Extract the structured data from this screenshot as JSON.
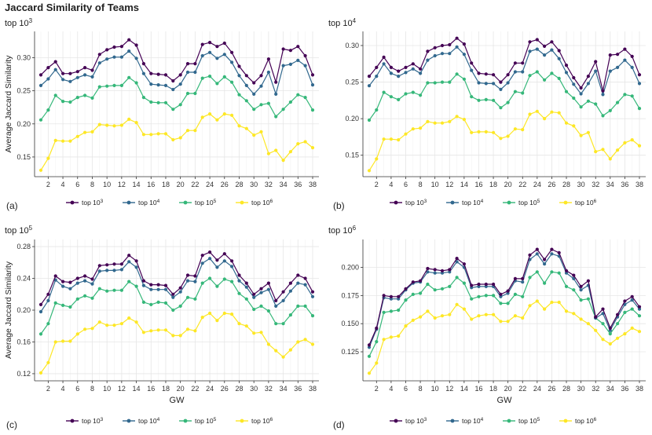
{
  "title": "Jaccard Similarity of Teams",
  "colors": {
    "top_1e3": "#440154",
    "top_1e4": "#31688e",
    "top_1e5": "#35b779",
    "top_1e6": "#fde725",
    "grid": "#e6e6e6"
  },
  "chart_data": [
    {
      "type": "line",
      "panel_label": "(a)",
      "panel_title": "top 10^3",
      "panel_title_base": "top  10",
      "panel_title_exp": "3",
      "ylabel": "Average Jaccard Similarity",
      "xlabel": "",
      "xlim": [
        1,
        38
      ],
      "ylim": [
        0.125,
        0.335
      ],
      "x_ticks": [
        2,
        4,
        6,
        8,
        10,
        12,
        14,
        16,
        18,
        20,
        22,
        24,
        26,
        28,
        30,
        32,
        34,
        36,
        38
      ],
      "y_ticks": [
        0.15,
        0.2,
        0.25,
        0.3
      ],
      "y_tick_labels": [
        "0.15",
        "0.20",
        "0.25",
        "0.30"
      ],
      "grid": true,
      "legend_position": "bottom",
      "x": [
        1,
        2,
        3,
        4,
        5,
        6,
        7,
        8,
        9,
        10,
        11,
        12,
        13,
        14,
        15,
        16,
        17,
        18,
        19,
        20,
        21,
        22,
        23,
        24,
        25,
        26,
        27,
        28,
        29,
        30,
        31,
        32,
        33,
        34,
        35,
        36,
        37,
        38
      ],
      "series": [
        {
          "name": "top 10^3",
          "legend_base": "top  10",
          "legend_exp": "3",
          "color_key": "top_1e3",
          "values": [
            0.274,
            0.285,
            0.294,
            0.276,
            0.276,
            0.279,
            0.285,
            0.281,
            0.305,
            0.312,
            0.316,
            0.317,
            0.327,
            0.319,
            0.291,
            0.276,
            0.275,
            0.274,
            0.265,
            0.274,
            0.291,
            0.291,
            0.32,
            0.323,
            0.317,
            0.322,
            0.308,
            0.287,
            0.273,
            0.262,
            0.273,
            0.298,
            0.263,
            0.313,
            0.311,
            0.317,
            0.303,
            0.274
          ]
        },
        {
          "name": "top 10^4",
          "legend_base": "top  10",
          "legend_exp": "4",
          "color_key": "top_1e4",
          "values": [
            0.258,
            0.268,
            0.282,
            0.267,
            0.264,
            0.27,
            0.274,
            0.271,
            0.292,
            0.298,
            0.301,
            0.301,
            0.31,
            0.299,
            0.276,
            0.26,
            0.259,
            0.258,
            0.252,
            0.26,
            0.278,
            0.278,
            0.303,
            0.308,
            0.299,
            0.305,
            0.293,
            0.273,
            0.258,
            0.245,
            0.257,
            0.278,
            0.245,
            0.288,
            0.29,
            0.296,
            0.288,
            0.259
          ]
        },
        {
          "name": "top 10^5",
          "legend_base": "top  10",
          "legend_exp": "5",
          "color_key": "top_1e5",
          "values": [
            0.206,
            0.221,
            0.243,
            0.234,
            0.233,
            0.24,
            0.243,
            0.239,
            0.256,
            0.257,
            0.258,
            0.258,
            0.27,
            0.262,
            0.24,
            0.233,
            0.232,
            0.232,
            0.222,
            0.229,
            0.246,
            0.246,
            0.269,
            0.272,
            0.261,
            0.271,
            0.263,
            0.244,
            0.235,
            0.222,
            0.229,
            0.231,
            0.211,
            0.222,
            0.233,
            0.244,
            0.24,
            0.221
          ]
        },
        {
          "name": "top 10^6",
          "legend_base": "top  10",
          "legend_exp": "6",
          "color_key": "top_1e6",
          "values": [
            0.13,
            0.148,
            0.175,
            0.174,
            0.174,
            0.181,
            0.187,
            0.188,
            0.199,
            0.198,
            0.197,
            0.198,
            0.207,
            0.202,
            0.184,
            0.184,
            0.185,
            0.185,
            0.176,
            0.179,
            0.19,
            0.19,
            0.21,
            0.215,
            0.206,
            0.215,
            0.213,
            0.197,
            0.193,
            0.183,
            0.188,
            0.155,
            0.16,
            0.145,
            0.158,
            0.17,
            0.173,
            0.164
          ]
        }
      ]
    },
    {
      "type": "line",
      "panel_label": "(b)",
      "panel_title": "top 10^4",
      "panel_title_base": "top  10",
      "panel_title_exp": "4",
      "ylabel": "",
      "xlabel": "",
      "xlim": [
        1,
        38
      ],
      "ylim": [
        0.125,
        0.315
      ],
      "x_ticks": [
        2,
        4,
        6,
        8,
        10,
        12,
        14,
        16,
        18,
        20,
        22,
        24,
        26,
        28,
        30,
        32,
        34,
        36,
        38
      ],
      "y_ticks": [
        0.15,
        0.2,
        0.25,
        0.3
      ],
      "y_tick_labels": [
        "0.15",
        "0.20",
        "0.25",
        "0.30"
      ],
      "grid": true,
      "legend_position": "bottom",
      "x": [
        1,
        2,
        3,
        4,
        5,
        6,
        7,
        8,
        9,
        10,
        11,
        12,
        13,
        14,
        15,
        16,
        17,
        18,
        19,
        20,
        21,
        22,
        23,
        24,
        25,
        26,
        27,
        28,
        29,
        30,
        31,
        32,
        33,
        34,
        35,
        36,
        37,
        38
      ],
      "series": [
        {
          "name": "top 10^3",
          "legend_base": "top  10",
          "legend_exp": "3",
          "color_key": "top_1e3",
          "values": [
            0.258,
            0.27,
            0.284,
            0.27,
            0.265,
            0.27,
            0.275,
            0.268,
            0.292,
            0.297,
            0.3,
            0.301,
            0.31,
            0.302,
            0.276,
            0.262,
            0.261,
            0.26,
            0.25,
            0.26,
            0.276,
            0.276,
            0.305,
            0.308,
            0.299,
            0.305,
            0.293,
            0.273,
            0.256,
            0.242,
            0.258,
            0.278,
            0.238,
            0.287,
            0.288,
            0.295,
            0.285,
            0.26
          ]
        },
        {
          "name": "top 10^4",
          "legend_base": "top  10",
          "legend_exp": "4",
          "color_key": "top_1e4",
          "values": [
            0.245,
            0.258,
            0.275,
            0.262,
            0.258,
            0.263,
            0.268,
            0.262,
            0.28,
            0.286,
            0.289,
            0.289,
            0.298,
            0.288,
            0.266,
            0.249,
            0.248,
            0.248,
            0.24,
            0.249,
            0.264,
            0.264,
            0.292,
            0.295,
            0.287,
            0.294,
            0.282,
            0.263,
            0.247,
            0.234,
            0.248,
            0.265,
            0.233,
            0.265,
            0.27,
            0.28,
            0.27,
            0.248
          ]
        },
        {
          "name": "top 10^5",
          "legend_base": "top  10",
          "legend_exp": "5",
          "color_key": "top_1e5",
          "values": [
            0.198,
            0.212,
            0.236,
            0.23,
            0.226,
            0.234,
            0.236,
            0.232,
            0.249,
            0.249,
            0.25,
            0.25,
            0.261,
            0.254,
            0.23,
            0.225,
            0.226,
            0.225,
            0.215,
            0.222,
            0.237,
            0.235,
            0.259,
            0.264,
            0.253,
            0.262,
            0.255,
            0.237,
            0.228,
            0.216,
            0.224,
            0.22,
            0.204,
            0.211,
            0.222,
            0.233,
            0.231,
            0.214
          ]
        },
        {
          "name": "top 10^6",
          "legend_base": "top  10",
          "legend_exp": "6",
          "color_key": "top_1e6",
          "values": [
            0.129,
            0.145,
            0.172,
            0.172,
            0.171,
            0.179,
            0.186,
            0.187,
            0.196,
            0.194,
            0.194,
            0.196,
            0.203,
            0.199,
            0.181,
            0.182,
            0.182,
            0.181,
            0.173,
            0.176,
            0.186,
            0.185,
            0.206,
            0.21,
            0.2,
            0.209,
            0.208,
            0.194,
            0.19,
            0.177,
            0.181,
            0.155,
            0.158,
            0.145,
            0.157,
            0.167,
            0.171,
            0.163
          ]
        }
      ]
    },
    {
      "type": "line",
      "panel_label": "(c)",
      "panel_title": "top 10^5",
      "panel_title_base": "top  10",
      "panel_title_exp": "5",
      "ylabel": "Average Jaccard Similarity",
      "xlabel": "GW",
      "xlim": [
        1,
        38
      ],
      "ylim": [
        0.115,
        0.285
      ],
      "x_ticks": [
        2,
        4,
        6,
        8,
        10,
        12,
        14,
        16,
        18,
        20,
        22,
        24,
        26,
        28,
        30,
        32,
        34,
        36,
        38
      ],
      "y_ticks": [
        0.12,
        0.16,
        0.2,
        0.24,
        0.28
      ],
      "y_tick_labels": [
        "0.12",
        "0.16",
        "0.20",
        "0.24",
        "0.28"
      ],
      "grid": true,
      "legend_position": "bottom",
      "x": [
        1,
        2,
        3,
        4,
        5,
        6,
        7,
        8,
        9,
        10,
        11,
        12,
        13,
        14,
        15,
        16,
        17,
        18,
        19,
        20,
        21,
        22,
        23,
        24,
        25,
        26,
        27,
        28,
        29,
        30,
        31,
        32,
        33,
        34,
        35,
        36,
        37,
        38
      ],
      "series": [
        {
          "name": "top 10^3",
          "legend_base": "top  10",
          "legend_exp": "3",
          "color_key": "top_1e3",
          "values": [
            0.207,
            0.22,
            0.243,
            0.236,
            0.235,
            0.24,
            0.243,
            0.239,
            0.256,
            0.257,
            0.258,
            0.258,
            0.269,
            0.262,
            0.237,
            0.232,
            0.232,
            0.231,
            0.22,
            0.228,
            0.244,
            0.243,
            0.269,
            0.273,
            0.263,
            0.271,
            0.262,
            0.244,
            0.234,
            0.22,
            0.227,
            0.234,
            0.212,
            0.223,
            0.234,
            0.244,
            0.24,
            0.223
          ]
        },
        {
          "name": "top 10^4",
          "legend_base": "top  10",
          "legend_exp": "4",
          "color_key": "top_1e4",
          "values": [
            0.198,
            0.212,
            0.238,
            0.23,
            0.227,
            0.234,
            0.237,
            0.233,
            0.249,
            0.25,
            0.25,
            0.251,
            0.261,
            0.254,
            0.231,
            0.226,
            0.226,
            0.226,
            0.216,
            0.223,
            0.237,
            0.236,
            0.259,
            0.265,
            0.254,
            0.262,
            0.255,
            0.237,
            0.229,
            0.216,
            0.222,
            0.226,
            0.205,
            0.212,
            0.224,
            0.234,
            0.232,
            0.217
          ]
        },
        {
          "name": "top 10^5",
          "legend_base": "top  10",
          "legend_exp": "5",
          "color_key": "top_1e5",
          "values": [
            0.17,
            0.183,
            0.209,
            0.206,
            0.204,
            0.214,
            0.218,
            0.215,
            0.227,
            0.224,
            0.225,
            0.225,
            0.236,
            0.23,
            0.21,
            0.207,
            0.21,
            0.209,
            0.2,
            0.205,
            0.216,
            0.214,
            0.234,
            0.24,
            0.23,
            0.239,
            0.236,
            0.221,
            0.214,
            0.201,
            0.205,
            0.199,
            0.183,
            0.183,
            0.194,
            0.205,
            0.205,
            0.193
          ]
        },
        {
          "name": "top 10^6",
          "legend_base": "top  10",
          "legend_exp": "6",
          "color_key": "top_1e6",
          "values": [
            0.121,
            0.134,
            0.16,
            0.161,
            0.161,
            0.17,
            0.176,
            0.177,
            0.185,
            0.181,
            0.181,
            0.183,
            0.19,
            0.185,
            0.172,
            0.174,
            0.175,
            0.175,
            0.168,
            0.168,
            0.176,
            0.174,
            0.191,
            0.196,
            0.187,
            0.196,
            0.195,
            0.183,
            0.18,
            0.171,
            0.172,
            0.157,
            0.149,
            0.141,
            0.15,
            0.16,
            0.163,
            0.157
          ]
        }
      ]
    },
    {
      "type": "line",
      "panel_label": "(d)",
      "panel_title": "top 10^6",
      "panel_title_base": "top  10",
      "panel_title_exp": "6",
      "ylabel": "",
      "xlabel": "GW",
      "xlim": [
        1,
        38
      ],
      "ylim": [
        0.102,
        0.222
      ],
      "x_ticks": [
        2,
        4,
        6,
        8,
        10,
        12,
        14,
        16,
        18,
        20,
        22,
        24,
        26,
        28,
        30,
        32,
        34,
        36,
        38
      ],
      "y_ticks": [
        0.125,
        0.15,
        0.175,
        0.2
      ],
      "y_tick_labels": [
        "0.125",
        "0.150",
        "0.175",
        "0.200"
      ],
      "grid": true,
      "legend_position": "bottom",
      "x": [
        1,
        2,
        3,
        4,
        5,
        6,
        7,
        8,
        9,
        10,
        11,
        12,
        13,
        14,
        15,
        16,
        17,
        18,
        19,
        20,
        21,
        22,
        23,
        24,
        25,
        26,
        27,
        28,
        29,
        30,
        31,
        32,
        33,
        34,
        35,
        36,
        37,
        38
      ],
      "series": [
        {
          "name": "top 10^3",
          "legend_base": "top  10",
          "legend_exp": "3",
          "color_key": "top_1e3",
          "values": [
            0.131,
            0.146,
            0.175,
            0.174,
            0.174,
            0.181,
            0.187,
            0.188,
            0.199,
            0.198,
            0.197,
            0.198,
            0.208,
            0.203,
            0.184,
            0.185,
            0.185,
            0.185,
            0.176,
            0.179,
            0.19,
            0.19,
            0.211,
            0.216,
            0.207,
            0.216,
            0.213,
            0.197,
            0.193,
            0.183,
            0.188,
            0.156,
            0.163,
            0.146,
            0.158,
            0.17,
            0.174,
            0.165
          ]
        },
        {
          "name": "top 10^4",
          "legend_base": "top  10",
          "legend_exp": "4",
          "color_key": "top_1e4",
          "values": [
            0.129,
            0.145,
            0.173,
            0.172,
            0.172,
            0.18,
            0.186,
            0.187,
            0.196,
            0.195,
            0.195,
            0.196,
            0.205,
            0.2,
            0.182,
            0.183,
            0.183,
            0.183,
            0.174,
            0.177,
            0.188,
            0.187,
            0.207,
            0.212,
            0.203,
            0.212,
            0.21,
            0.195,
            0.19,
            0.18,
            0.184,
            0.155,
            0.159,
            0.144,
            0.156,
            0.167,
            0.171,
            0.163
          ]
        },
        {
          "name": "top 10^5",
          "legend_base": "top  10",
          "legend_exp": "5",
          "color_key": "top_1e5",
          "values": [
            0.121,
            0.134,
            0.16,
            0.161,
            0.162,
            0.171,
            0.176,
            0.177,
            0.185,
            0.18,
            0.181,
            0.183,
            0.191,
            0.186,
            0.172,
            0.174,
            0.175,
            0.175,
            0.168,
            0.168,
            0.176,
            0.174,
            0.191,
            0.196,
            0.186,
            0.196,
            0.195,
            0.183,
            0.18,
            0.171,
            0.172,
            0.155,
            0.15,
            0.141,
            0.15,
            0.16,
            0.163,
            0.157
          ]
        },
        {
          "name": "top 10^6",
          "legend_base": "top  10",
          "legend_exp": "6",
          "color_key": "top_1e6",
          "values": [
            0.106,
            0.115,
            0.136,
            0.138,
            0.139,
            0.148,
            0.153,
            0.156,
            0.161,
            0.155,
            0.157,
            0.158,
            0.167,
            0.163,
            0.154,
            0.157,
            0.158,
            0.158,
            0.152,
            0.152,
            0.157,
            0.155,
            0.166,
            0.17,
            0.163,
            0.169,
            0.169,
            0.161,
            0.159,
            0.154,
            0.15,
            0.144,
            0.136,
            0.132,
            0.137,
            0.141,
            0.146,
            0.143
          ]
        }
      ]
    }
  ]
}
